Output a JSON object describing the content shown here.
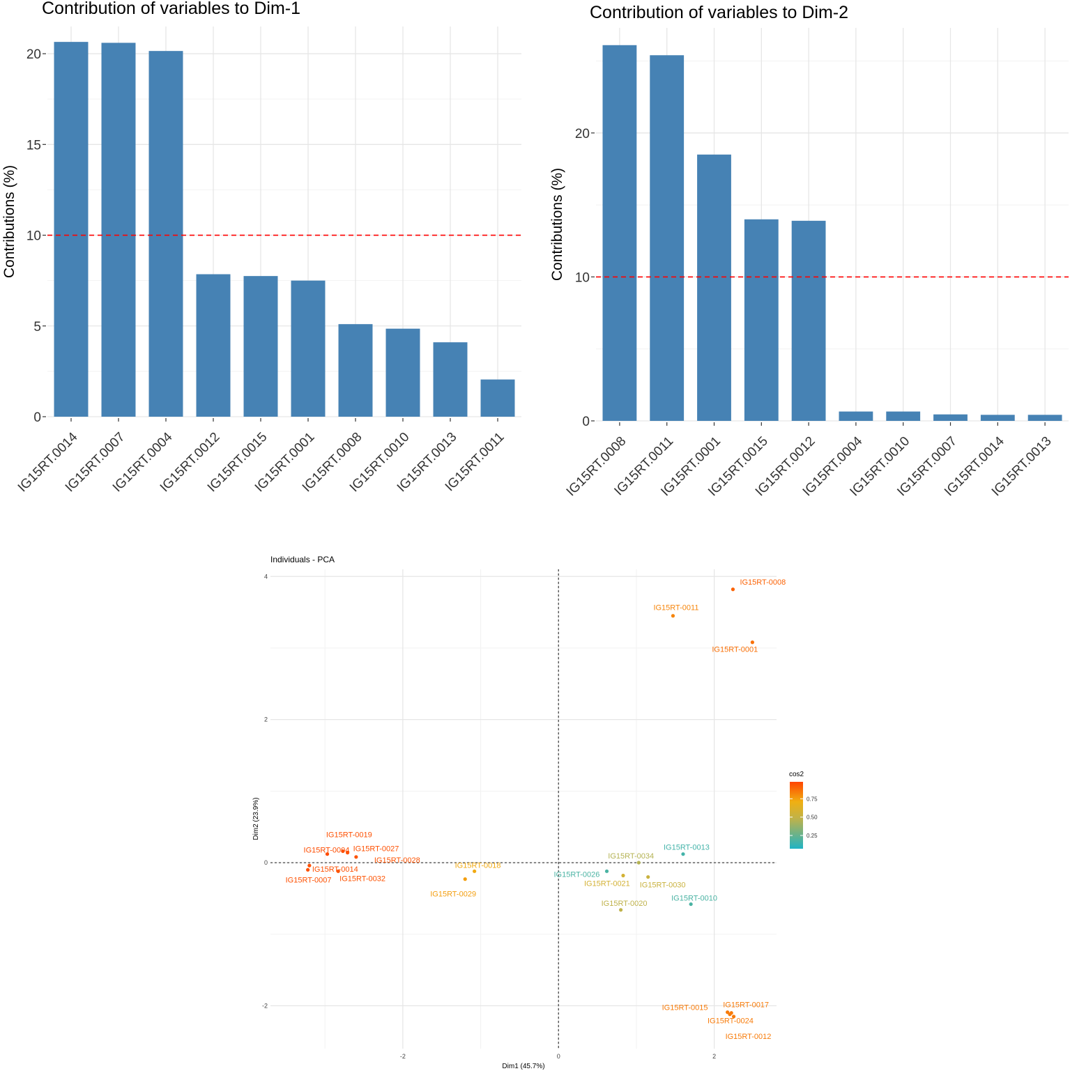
{
  "chart_data": [
    {
      "type": "bar",
      "title": "Contribution of variables to Dim-1",
      "xlabel": "",
      "ylabel": "Contributions (%)",
      "categories": [
        "IG15RT.0014",
        "IG15RT.0007",
        "IG15RT.0004",
        "IG15RT.0012",
        "IG15RT.0015",
        "IG15RT.0001",
        "IG15RT.0008",
        "IG15RT.0010",
        "IG15RT.0013",
        "IG15RT.0011"
      ],
      "values": [
        20.65,
        20.6,
        20.15,
        7.85,
        7.75,
        7.5,
        5.1,
        4.85,
        4.1,
        2.05
      ],
      "reference_line": 10,
      "ylim": [
        0,
        21.5
      ],
      "yticks": [
        0,
        5,
        10,
        15,
        20
      ],
      "colors": {
        "bar": "#4682b4",
        "reference": "#ff0000"
      }
    },
    {
      "type": "bar",
      "title": "Contribution of variables to Dim-2",
      "xlabel": "",
      "ylabel": "Contributions (%)",
      "categories": [
        "IG15RT.0008",
        "IG15RT.0011",
        "IG15RT.0001",
        "IG15RT.0015",
        "IG15RT.0012",
        "IG15RT.0004",
        "IG15RT.0010",
        "IG15RT.0007",
        "IG15RT.0014",
        "IG15RT.0013"
      ],
      "values": [
        26.1,
        25.4,
        18.5,
        14.0,
        13.9,
        0.65,
        0.65,
        0.45,
        0.42,
        0.42
      ],
      "reference_line": 10,
      "ylim": [
        0,
        27.3
      ],
      "yticks": [
        0,
        10,
        20
      ],
      "colors": {
        "bar": "#4682b4",
        "reference": "#ff0000"
      }
    },
    {
      "type": "scatter",
      "title": "Individuals - PCA",
      "xlabel": "Dim1 (45.7%)",
      "ylabel": "Dim2 (23.9%)",
      "xlim": [
        -3.7,
        2.8
      ],
      "ylim": [
        -2.6,
        4.1
      ],
      "xticks": [
        -2,
        0,
        2
      ],
      "yticks": [
        -2,
        0,
        2,
        4
      ],
      "legend": {
        "title": "cos2",
        "ticks": [
          "0.25",
          "0.50",
          "0.75"
        ],
        "placement": "right"
      },
      "points": [
        {
          "label": "IG15RT-0008",
          "x": 2.24,
          "y": 3.82,
          "cos2": 0.92
        },
        {
          "label": "IG15RT-0011",
          "x": 1.47,
          "y": 3.45,
          "cos2": 0.82
        },
        {
          "label": "IG15RT-0001",
          "x": 2.49,
          "y": 3.08,
          "cos2": 0.88
        },
        {
          "label": "IG15RT-0019",
          "x": -2.77,
          "y": 0.16,
          "cos2": 0.97
        },
        {
          "label": "IG15RT-0027",
          "x": -2.71,
          "y": 0.14,
          "cos2": 0.97
        },
        {
          "label": "IG15RT-0004",
          "x": -2.97,
          "y": 0.12,
          "cos2": 0.98
        },
        {
          "label": "IG15RT-0014",
          "x": -3.2,
          "y": -0.04,
          "cos2": 0.97
        },
        {
          "label": "IG15RT-0028",
          "x": -2.6,
          "y": 0.08,
          "cos2": 0.96
        },
        {
          "label": "IG15RT-0007",
          "x": -3.22,
          "y": -0.1,
          "cos2": 0.97
        },
        {
          "label": "IG15RT-0032",
          "x": -2.83,
          "y": -0.12,
          "cos2": 0.96
        },
        {
          "label": "IG15RT-0018",
          "x": -1.08,
          "y": -0.12,
          "cos2": 0.72
        },
        {
          "label": "IG15RT-0029",
          "x": -1.2,
          "y": -0.23,
          "cos2": 0.75
        },
        {
          "label": "IG15RT-0026",
          "x": 0.62,
          "y": -0.12,
          "cos2": 0.12
        },
        {
          "label": "IG15RT-0034",
          "x": 1.03,
          "y": 0.0,
          "cos2": 0.42
        },
        {
          "label": "IG15RT-0013",
          "x": 1.6,
          "y": 0.12,
          "cos2": 0.1
        },
        {
          "label": "IG15RT-0021",
          "x": 0.83,
          "y": -0.18,
          "cos2": 0.55
        },
        {
          "label": "IG15RT-0030",
          "x": 1.15,
          "y": -0.2,
          "cos2": 0.5
        },
        {
          "label": "IG15RT-0010",
          "x": 1.7,
          "y": -0.58,
          "cos2": 0.12
        },
        {
          "label": "IG15RT-0020",
          "x": 0.8,
          "y": -0.66,
          "cos2": 0.45
        },
        {
          "label": "IG15RT-0015",
          "x": 2.17,
          "y": -2.09,
          "cos2": 0.85
        },
        {
          "label": "IG15RT-0017",
          "x": 2.22,
          "y": -2.1,
          "cos2": 0.85
        },
        {
          "label": "IG15RT-0024",
          "x": 2.2,
          "y": -2.12,
          "cos2": 0.85
        },
        {
          "label": "IG15RT-0012",
          "x": 2.25,
          "y": -2.15,
          "cos2": 0.85
        }
      ]
    }
  ]
}
